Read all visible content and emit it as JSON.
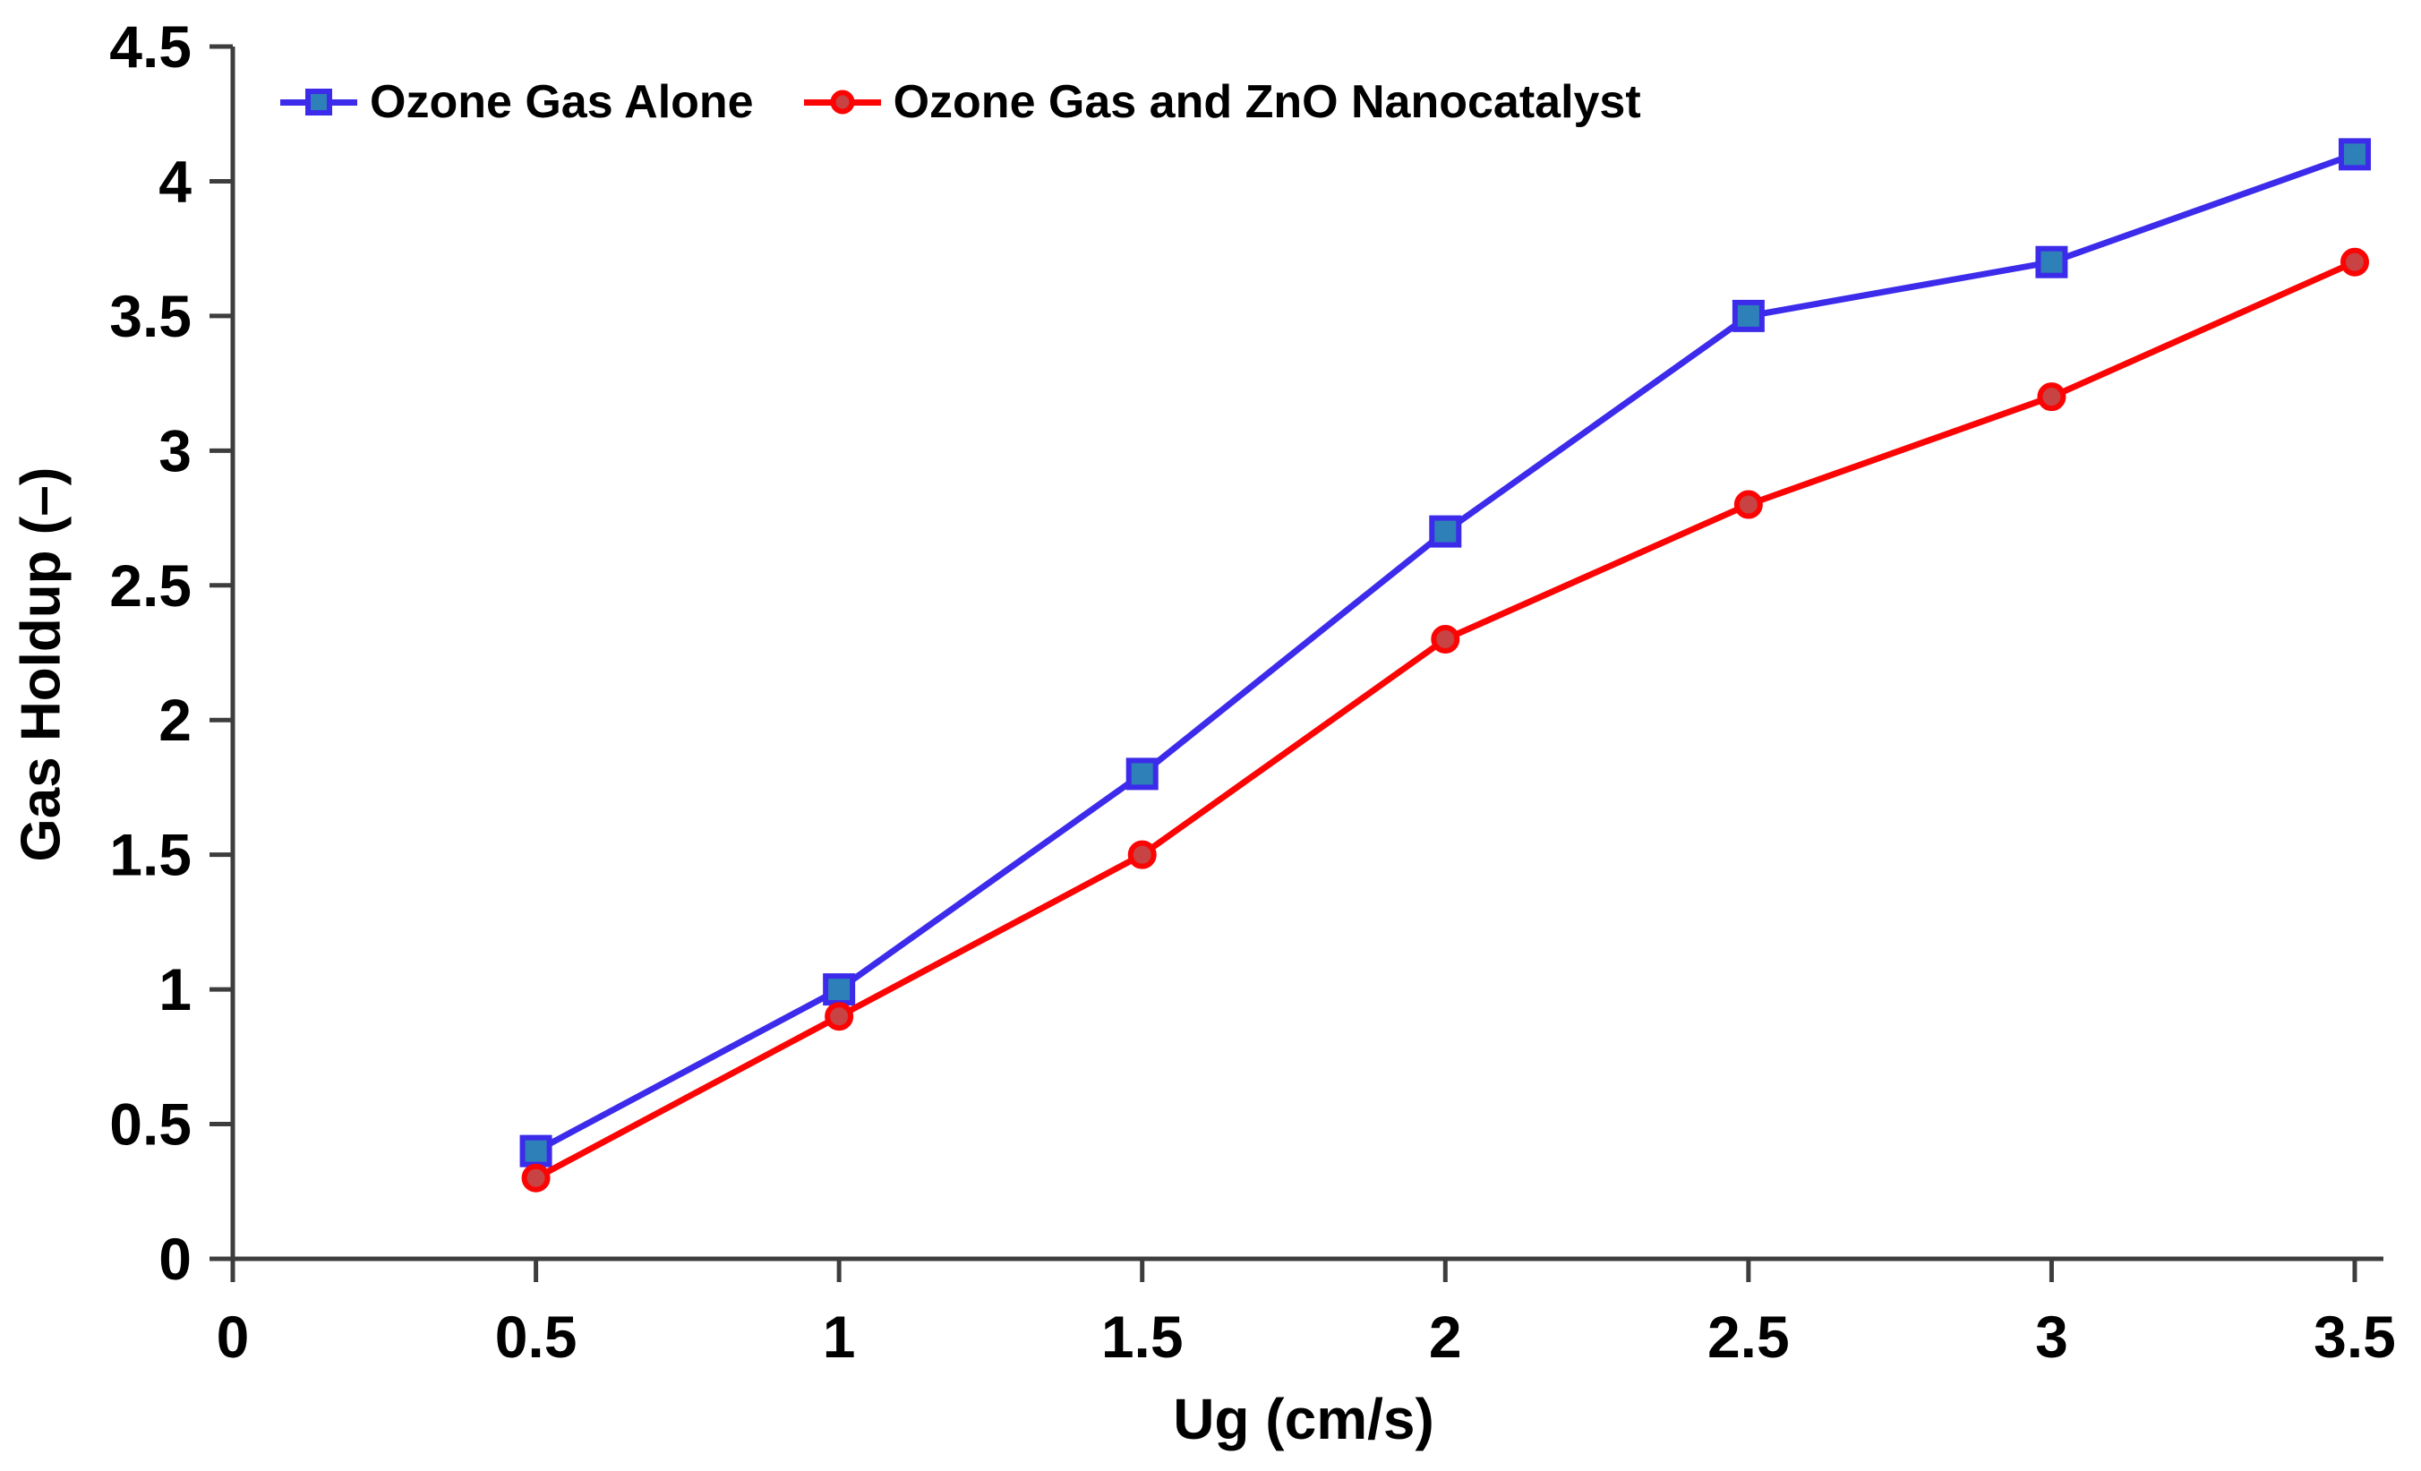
{
  "figure": {
    "background": "#ffffff"
  },
  "chart_data": {
    "type": "line",
    "title": "",
    "xlabel": "Ug (cm/s)",
    "ylabel": "Gas Holdup (–)",
    "x": [
      0.5,
      1,
      1.5,
      2,
      2.5,
      3,
      3.5
    ],
    "series": [
      {
        "name": "Ozone Gas Alone",
        "line_color": "#3c2bea",
        "marker": "square",
        "marker_fill": "#2e80b8",
        "values": [
          0.4,
          1.0,
          1.8,
          2.7,
          3.5,
          3.7,
          4.1
        ]
      },
      {
        "name": "Ozone Gas and ZnO Nanocatalyst",
        "line_color": "#fb0404",
        "marker": "circle",
        "marker_fill": "#c84343",
        "values": [
          0.3,
          0.9,
          1.5,
          2.3,
          2.8,
          3.2,
          3.7
        ]
      }
    ],
    "xlim": [
      0,
      3.5
    ],
    "ylim": [
      0,
      4.5
    ],
    "x_ticks": [
      0,
      0.5,
      1,
      1.5,
      2,
      2.5,
      3,
      3.5
    ],
    "y_ticks": [
      0,
      0.5,
      1,
      1.5,
      2,
      2.5,
      3,
      3.5,
      4,
      4.5
    ],
    "grid": false,
    "legend_position": "top-inside-left",
    "axis_color": "#3d3d3d",
    "tick_label_color": "#000000"
  }
}
